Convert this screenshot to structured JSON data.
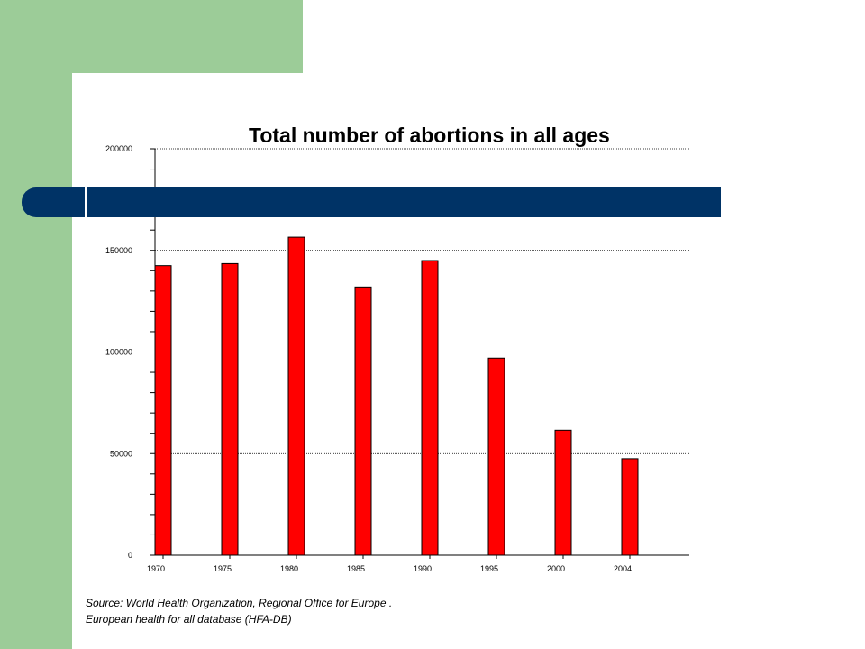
{
  "chart_data": {
    "type": "bar",
    "title": "Total number of abortions in all ages",
    "categories": [
      "1970",
      "1975",
      "1980",
      "1985",
      "1990",
      "1995",
      "2000",
      "2004"
    ],
    "series": [
      {
        "values": [
          142500,
          143500,
          156500,
          132000,
          145000,
          97000,
          61500,
          47500
        ]
      }
    ],
    "ylim": [
      0,
      200000
    ],
    "yticks": [
      "0",
      "50000",
      "100000",
      "150000",
      "200000"
    ],
    "xlabel": "",
    "ylabel": "",
    "grid": true,
    "bar_color": "#ff0000"
  },
  "source": {
    "line1": "Source: World Health Organization, Regional Office for Europe .",
    "line2": "European health for all database (HFA-DB)"
  },
  "colors": {
    "accent_green": "#9ccc98",
    "accent_navy": "#003366"
  }
}
